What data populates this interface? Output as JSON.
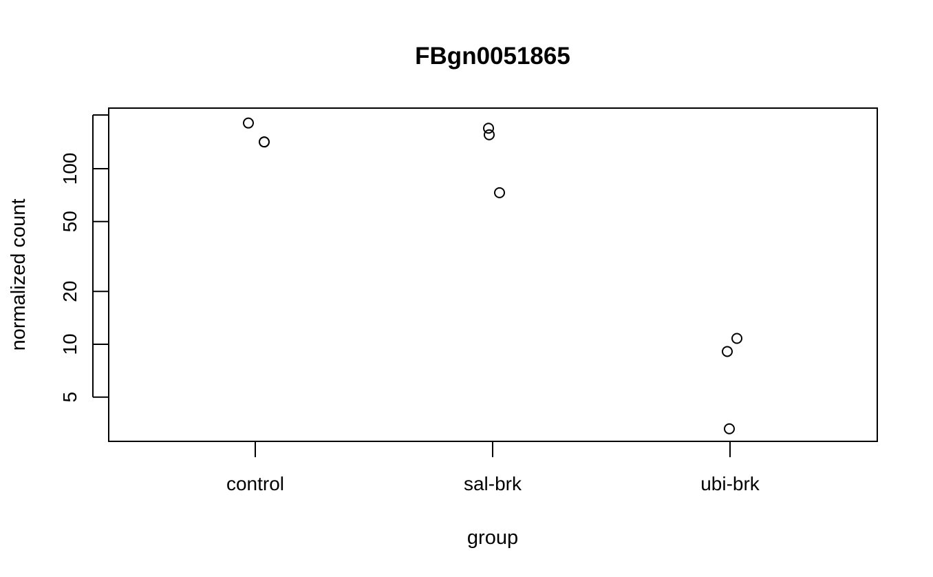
{
  "chart_data": {
    "type": "scatter",
    "title": "FBgn0051865",
    "xlabel": "group",
    "ylabel": "normalized count",
    "y_scale": "log",
    "ylim": [
      2.9,
      225
    ],
    "categories": [
      "control",
      "sal-brk",
      "ubi-brk"
    ],
    "yticks": [
      5,
      10,
      20,
      50,
      100
    ],
    "ytick_labels": [
      "5",
      "10",
      "20",
      "50",
      "100"
    ],
    "points": [
      {
        "group": "control",
        "y": 182
      },
      {
        "group": "control",
        "y": 142
      },
      {
        "group": "control",
        "y": 142
      },
      {
        "group": "sal-brk",
        "y": 170
      },
      {
        "group": "sal-brk",
        "y": 156
      },
      {
        "group": "sal-brk",
        "y": 73
      },
      {
        "group": "ubi-brk",
        "y": 10.8
      },
      {
        "group": "ubi-brk",
        "y": 9.1
      },
      {
        "group": "ubi-brk",
        "y": 3.3
      }
    ],
    "grid": false,
    "legend": "none",
    "marker": "open-circle",
    "colors": {
      "marker": "#000000",
      "axis": "#000000",
      "background": "#ffffff"
    }
  }
}
